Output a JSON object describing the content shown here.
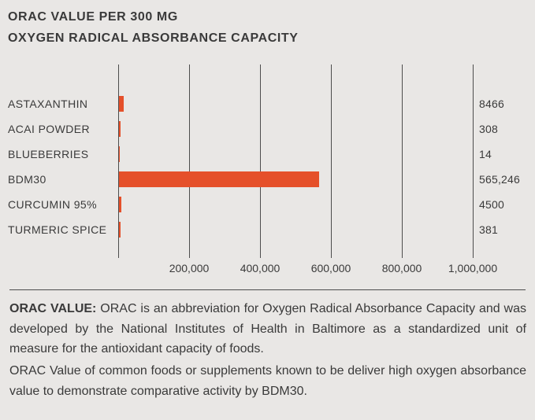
{
  "title": {
    "line1": "ORAC VALUE PER 300 MG",
    "line2": "OXYGEN RADICAL ABSORBANCE CAPACITY"
  },
  "chart_data": {
    "type": "bar",
    "orientation": "horizontal",
    "title": "ORAC VALUE PER 300 MG — OXYGEN RADICAL ABSORBANCE CAPACITY",
    "categories": [
      "ASTAXANTHIN",
      "ACAI POWDER",
      "BLUEBERRIES",
      "BDM30",
      "CURCUMIN 95%",
      "TURMERIC SPICE"
    ],
    "values": [
      8466,
      308,
      14,
      565246,
      4500,
      381
    ],
    "value_labels": [
      "8466",
      "308",
      "14",
      "565,246",
      "4500",
      "381"
    ],
    "xlim": [
      0,
      1000000
    ],
    "x_tick_values": [
      200000,
      400000,
      600000,
      800000,
      1000000
    ],
    "x_tick_labels": [
      "200,000",
      "400,000",
      "600,000",
      "800,000",
      "1,000,000"
    ],
    "grid": "vertical-gridlines-on",
    "legend": "none",
    "bar_color": "#e5502a"
  },
  "footnote": {
    "para1_bold": "ORAC VALUE:",
    "para1_rest": " ORAC is an abbreviation for Oxygen Radical Absorbance Capacity and was developed by the National Institutes of Health in Baltimore as a standardized unit of measure for the antioxidant capacity of foods.",
    "para2": "ORAC Value of common foods or supplements known to be deliver high oxygen absorbance value to demonstrate comparative activity by BDM30."
  },
  "colors": {
    "background": "#e9e7e5",
    "bar": "#e5502a",
    "text": "#3a3a3a",
    "gridline": "#4d4d4d"
  }
}
